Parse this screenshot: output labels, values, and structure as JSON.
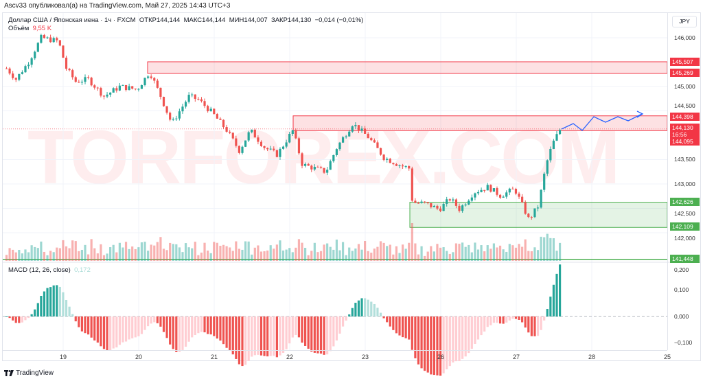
{
  "header": {
    "published": "Ascv33 опубликовал(а) на TradingView.com, Май 27, 2025 14:43 UTC+3"
  },
  "legend": {
    "symbol": "Доллар США / Японская иена · 1ч · FXCM",
    "open": "ОТКР144,144",
    "high": "МАКС144,144",
    "low": "МИН144,007",
    "close": "ЗАКР144,130",
    "change": "−0,014 (−0,01%)",
    "volume_label": "Объём",
    "volume_value": "9,55 K"
  },
  "macd": {
    "label": "MACD (12, 26, close)",
    "value": "0,172"
  },
  "axis": {
    "currency": "JPY",
    "price_ticks": [
      "146,000",
      "145,000",
      "144,500",
      "143,500",
      "143,000",
      "142,500",
      "142,000"
    ],
    "macd_ticks": [
      "0,200",
      "0,100",
      "0,000",
      "−0,100"
    ],
    "time_ticks": [
      "19",
      "20",
      "21",
      "22",
      "23",
      "26",
      "27",
      "28",
      "25"
    ]
  },
  "levels": {
    "r1_top": "145,507",
    "r1_bottom": "145,269",
    "r2_top": "144,398",
    "last_price": "144,130",
    "countdown": "16:56",
    "r2_bottom": "144,095",
    "g_top": "142,626",
    "g_bottom": "142,109",
    "support": "141,448"
  },
  "colors": {
    "up": "#26a69a",
    "down": "#ef5350",
    "zone_red": "#f23645",
    "zone_green": "#4caf50",
    "projection": "#2962ff"
  },
  "watermark": "TORFOREX.COM",
  "footer": {
    "brand": "TradingView"
  },
  "chart_data": {
    "type": "candlestick",
    "interval": "1h",
    "note_levels": [
      145.507,
      145.269,
      144.398,
      144.095,
      142.626,
      142.109,
      141.448
    ],
    "price_path": [
      {
        "t": "05-18 06:00",
        "p": 145.37
      },
      {
        "t": "05-18 09:00",
        "p": 145.15
      },
      {
        "t": "05-18 13:00",
        "p": 145.5
      },
      {
        "t": "05-18 17:00",
        "p": 146.0
      },
      {
        "t": "05-18 22:30",
        "p": 145.93
      },
      {
        "t": "05-19 01:00",
        "p": 145.37
      },
      {
        "t": "05-19 04:00",
        "p": 145.1
      },
      {
        "t": "05-19 08:00",
        "p": 145.15
      },
      {
        "t": "05-19 13:00",
        "p": 144.8
      },
      {
        "t": "05-19 18:00",
        "p": 145.0
      },
      {
        "t": "05-19 23:30",
        "p": 144.94
      },
      {
        "t": "05-20 03:30",
        "p": 145.3
      },
      {
        "t": "05-20 07:00",
        "p": 144.8
      },
      {
        "t": "05-20 10:30",
        "p": 144.24
      },
      {
        "t": "05-20 16:00",
        "p": 144.8
      },
      {
        "t": "05-20 19:00",
        "p": 144.73
      },
      {
        "t": "05-20 23:30",
        "p": 144.45
      },
      {
        "t": "05-21 04:00",
        "p": 144.1
      },
      {
        "t": "05-21 08:00",
        "p": 143.68
      },
      {
        "t": "05-21 11:30",
        "p": 144.1
      },
      {
        "t": "05-21 16:00",
        "p": 143.75
      },
      {
        "t": "05-21 20:00",
        "p": 143.6
      },
      {
        "t": "05-22 01:00",
        "p": 144.1
      },
      {
        "t": "05-22 04:00",
        "p": 143.4
      },
      {
        "t": "05-22 08:00",
        "p": 143.32
      },
      {
        "t": "05-22 11:30",
        "p": 143.25
      },
      {
        "t": "05-22 15:00",
        "p": 143.75
      },
      {
        "t": "05-22 20:00",
        "p": 144.24
      },
      {
        "t": "05-23 01:00",
        "p": 143.96
      },
      {
        "t": "05-23 06:00",
        "p": 143.54
      },
      {
        "t": "05-23 10:30",
        "p": 143.4
      },
      {
        "t": "05-23 14:00",
        "p": 143.32
      },
      {
        "t": "05-23 15:00",
        "p": 142.62
      },
      {
        "t": "05-23 19:00",
        "p": 142.6
      },
      {
        "t": "05-23 23:30",
        "p": 142.48
      },
      {
        "t": "05-26 03:00",
        "p": 142.7
      },
      {
        "t": "05-26 06:00",
        "p": 142.48
      },
      {
        "t": "05-26 10:30",
        "p": 142.83
      },
      {
        "t": "05-26 15:00",
        "p": 142.94
      },
      {
        "t": "05-26 19:00",
        "p": 142.76
      },
      {
        "t": "05-26 23:30",
        "p": 142.9
      },
      {
        "t": "05-27 04:00",
        "p": 142.27
      },
      {
        "t": "05-27 07:00",
        "p": 142.55
      },
      {
        "t": "05-27 09:30",
        "p": 143.4
      },
      {
        "t": "05-27 11:30",
        "p": 143.82
      },
      {
        "t": "05-27 14:00",
        "p": 144.13
      }
    ]
  }
}
